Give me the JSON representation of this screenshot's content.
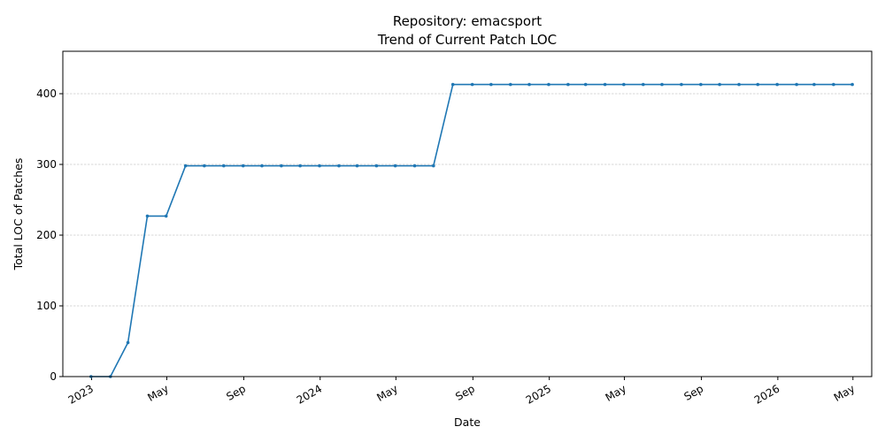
{
  "chart_data": {
    "type": "line",
    "title": "Repository: emacsport",
    "subtitle": "Trend of Current Patch LOC",
    "xlabel": "Date",
    "ylabel": "Total LOC of Patches",
    "ylim": [
      0,
      460
    ],
    "xlim": [
      "2022-11-16",
      "2026-05-31"
    ],
    "y_ticks": [
      0,
      100,
      200,
      300,
      400
    ],
    "x_ticks": [
      {
        "date": "2023-01-01",
        "label": "2023"
      },
      {
        "date": "2023-05-01",
        "label": "May"
      },
      {
        "date": "2023-09-01",
        "label": "Sep"
      },
      {
        "date": "2024-01-01",
        "label": "2024"
      },
      {
        "date": "2024-05-01",
        "label": "May"
      },
      {
        "date": "2024-09-01",
        "label": "Sep"
      },
      {
        "date": "2025-01-01",
        "label": "2025"
      },
      {
        "date": "2025-05-01",
        "label": "May"
      },
      {
        "date": "2025-09-01",
        "label": "Sep"
      },
      {
        "date": "2026-01-01",
        "label": "2026"
      },
      {
        "date": "2026-05-01",
        "label": "May"
      }
    ],
    "grid": "y",
    "line_color": "#1f77b4",
    "series": [
      {
        "x": [
          "2022-12-31",
          "2023-01-31",
          "2023-02-28",
          "2023-03-31",
          "2023-04-30",
          "2023-05-31",
          "2023-06-30",
          "2023-07-31",
          "2023-08-31",
          "2023-09-30",
          "2023-10-31",
          "2023-11-30",
          "2023-12-31",
          "2024-01-31",
          "2024-02-29",
          "2024-03-31",
          "2024-04-30",
          "2024-05-31",
          "2024-06-30",
          "2024-07-31",
          "2024-08-31",
          "2024-09-30",
          "2024-10-31",
          "2024-11-30",
          "2024-12-31",
          "2025-01-31",
          "2025-02-28",
          "2025-03-31",
          "2025-04-30",
          "2025-05-31",
          "2025-06-30",
          "2025-07-31",
          "2025-08-31",
          "2025-09-30",
          "2025-10-31",
          "2025-11-30",
          "2025-12-31",
          "2026-01-31",
          "2026-02-28",
          "2026-03-31",
          "2026-04-30"
        ],
        "values": [
          0,
          0,
          48,
          227,
          227,
          298,
          298,
          298,
          298,
          298,
          298,
          298,
          298,
          298,
          298,
          298,
          298,
          298,
          298,
          413,
          413,
          413,
          413,
          413,
          413,
          413,
          413,
          413,
          413,
          413,
          413,
          413,
          413,
          413,
          413,
          413,
          413,
          413,
          413,
          413,
          413
        ]
      }
    ]
  }
}
